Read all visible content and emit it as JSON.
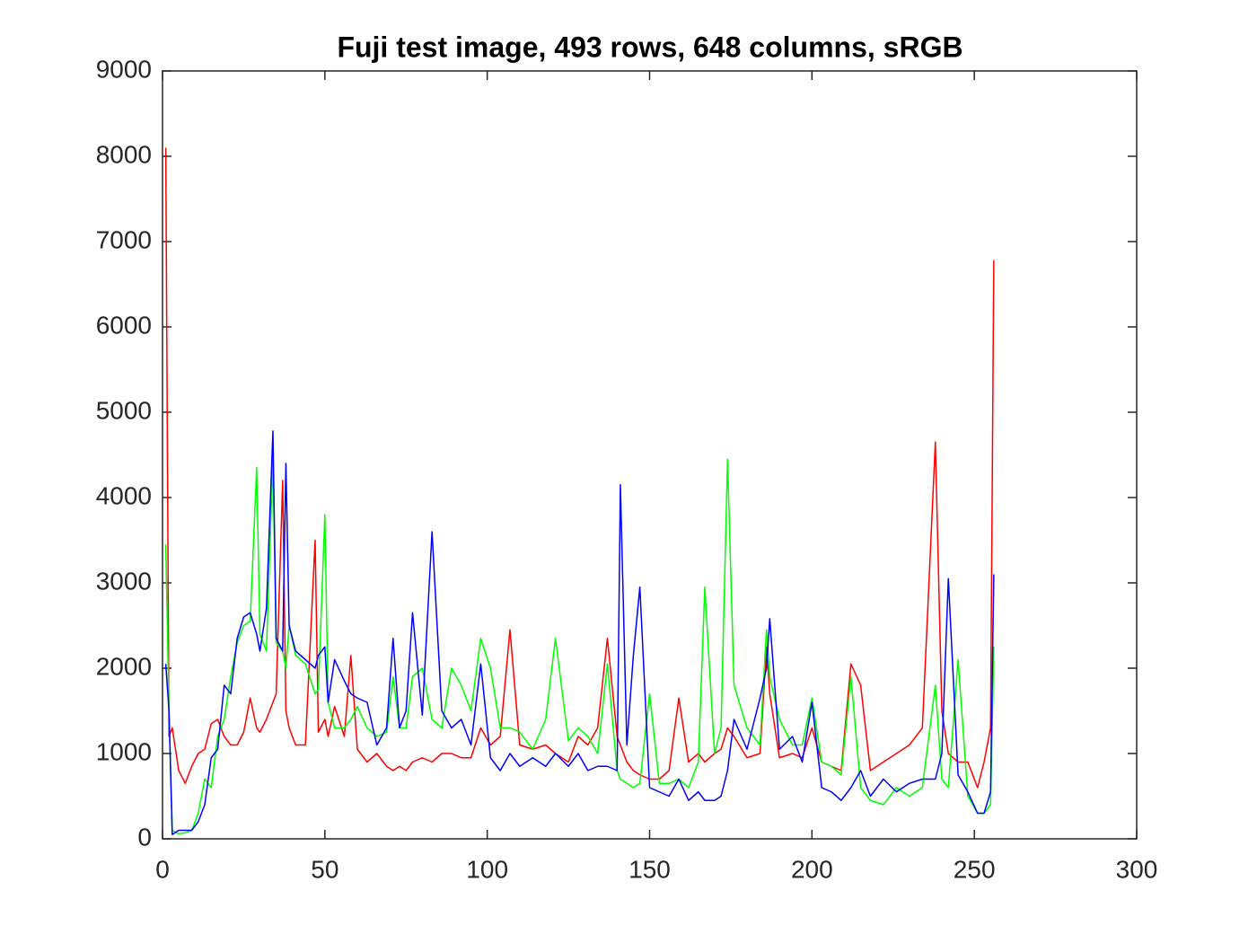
{
  "chart_data": {
    "type": "line",
    "title": "Fuji test image, 493 rows, 648 columns, sRGB",
    "x": [
      1,
      2,
      3,
      5,
      7,
      9,
      11,
      13,
      15,
      17,
      19,
      21,
      23,
      25,
      27,
      29,
      30,
      32,
      34,
      35,
      37,
      38,
      39,
      41,
      44,
      47,
      48,
      50,
      51,
      53,
      56,
      58,
      60,
      63,
      66,
      69,
      71,
      73,
      75,
      77,
      80,
      83,
      86,
      89,
      92,
      95,
      98,
      101,
      104,
      107,
      110,
      114,
      118,
      121,
      125,
      128,
      131,
      134,
      137,
      140,
      141,
      143,
      145,
      147,
      150,
      153,
      156,
      159,
      162,
      165,
      167,
      170,
      172,
      174,
      176,
      180,
      184,
      186,
      187,
      190,
      194,
      197,
      200,
      203,
      206,
      209,
      212,
      215,
      218,
      222,
      226,
      230,
      234,
      238,
      240,
      242,
      245,
      248,
      251,
      253,
      255,
      256
    ],
    "series": [
      {
        "color": "#ff0000",
        "values": [
          8100,
          1200,
          1300,
          800,
          650,
          850,
          1000,
          1050,
          1350,
          1400,
          1200,
          1100,
          1100,
          1250,
          1650,
          1300,
          1250,
          1400,
          1600,
          1700,
          4200,
          1500,
          1300,
          1100,
          1100,
          3500,
          1250,
          1400,
          1200,
          1550,
          1200,
          2150,
          1050,
          900,
          1000,
          850,
          800,
          850,
          800,
          900,
          950,
          900,
          1000,
          1000,
          950,
          950,
          1300,
          1100,
          1200,
          2450,
          1100,
          1050,
          1100,
          1000,
          900,
          1200,
          1100,
          1300,
          2350,
          1200,
          1100,
          900,
          800,
          750,
          700,
          700,
          800,
          1650,
          900,
          1000,
          900,
          1000,
          1050,
          1300,
          1200,
          950,
          1000,
          2250,
          1700,
          950,
          1000,
          950,
          1300,
          900,
          850,
          800,
          2050,
          1800,
          800,
          900,
          1000,
          1100,
          1300,
          4650,
          1500,
          1000,
          900,
          900,
          600,
          900,
          1300,
          6780
        ]
      },
      {
        "color": "#00ff00",
        "values": [
          3450,
          1500,
          100,
          60,
          70,
          100,
          300,
          700,
          600,
          1200,
          1400,
          1900,
          2300,
          2500,
          2550,
          4350,
          2400,
          2200,
          4450,
          2300,
          2200,
          2000,
          2500,
          2150,
          2050,
          1700,
          1750,
          3800,
          1600,
          1300,
          1300,
          1400,
          1550,
          1300,
          1200,
          1250,
          1900,
          1300,
          1300,
          1900,
          2000,
          1400,
          1300,
          2000,
          1800,
          1500,
          2350,
          2000,
          1300,
          1300,
          1250,
          1050,
          1400,
          2350,
          1150,
          1300,
          1200,
          1000,
          2050,
          800,
          700,
          650,
          600,
          650,
          1700,
          650,
          650,
          700,
          600,
          900,
          2950,
          1000,
          1300,
          4450,
          1800,
          1300,
          1100,
          2450,
          1900,
          1400,
          1100,
          1100,
          1650,
          900,
          850,
          750,
          1900,
          600,
          450,
          400,
          600,
          500,
          600,
          1800,
          700,
          600,
          2100,
          500,
          300,
          300,
          400,
          2250
        ]
      },
      {
        "color": "#0000ff",
        "values": [
          2050,
          1500,
          50,
          100,
          100,
          100,
          200,
          400,
          950,
          1050,
          1800,
          1700,
          2350,
          2600,
          2650,
          2400,
          2200,
          2700,
          4780,
          2350,
          2200,
          4400,
          2500,
          2200,
          2100,
          2000,
          2150,
          2250,
          1600,
          2100,
          1850,
          1700,
          1650,
          1600,
          1100,
          1300,
          2350,
          1300,
          1500,
          2650,
          1450,
          3600,
          1500,
          1300,
          1400,
          1100,
          2050,
          950,
          800,
          1000,
          850,
          950,
          850,
          1000,
          850,
          1000,
          800,
          850,
          850,
          800,
          4150,
          1100,
          2150,
          2950,
          600,
          550,
          500,
          700,
          450,
          550,
          450,
          450,
          500,
          800,
          1400,
          1050,
          1650,
          2000,
          2580,
          1050,
          1200,
          900,
          1600,
          600,
          550,
          450,
          600,
          800,
          500,
          700,
          550,
          650,
          700,
          700,
          1000,
          3050,
          750,
          550,
          300,
          300,
          550,
          3100
        ]
      }
    ],
    "xlim": [
      0,
      300
    ],
    "xticks": [
      0,
      50,
      100,
      150,
      200,
      250,
      300
    ],
    "ylim": [
      0,
      9000
    ],
    "yticks": [
      0,
      1000,
      2000,
      3000,
      4000,
      5000,
      6000,
      7000,
      8000,
      9000
    ]
  }
}
